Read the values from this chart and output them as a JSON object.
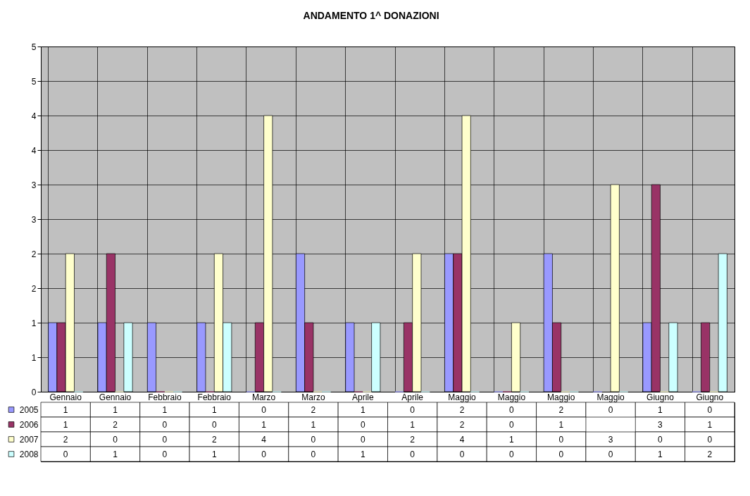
{
  "chart_data": {
    "type": "bar",
    "title": "ANDAMENTO 1^ DONAZIONI",
    "categories": [
      "Gennaio",
      "Gennaio",
      "Febbraio",
      "Febbraio",
      "Marzo",
      "Marzo",
      "Aprile",
      "Aprile",
      "Maggio",
      "Maggio",
      "Maggio",
      "Maggio",
      "Giugno",
      "Giugno"
    ],
    "series": [
      {
        "name": "2005",
        "color": "#9999ff",
        "values": [
          1,
          1,
          1,
          1,
          0,
          2,
          1,
          0,
          2,
          0,
          2,
          0,
          1,
          0
        ]
      },
      {
        "name": "2006",
        "color": "#993366",
        "values": [
          1,
          2,
          0,
          0,
          1,
          1,
          0,
          1,
          2,
          0,
          1,
          null,
          3,
          1
        ]
      },
      {
        "name": "2007",
        "color": "#ffffcc",
        "values": [
          2,
          0,
          0,
          2,
          4,
          0,
          0,
          2,
          4,
          1,
          0,
          3,
          0,
          0
        ]
      },
      {
        "name": "2008",
        "color": "#ccffff",
        "values": [
          0,
          1,
          0,
          1,
          0,
          0,
          1,
          0,
          0,
          0,
          0,
          0,
          1,
          2
        ]
      }
    ],
    "ylim": [
      0,
      5
    ],
    "yticks": [
      0,
      {
        "value": 0.5,
        "label": "1"
      },
      1,
      {
        "value": 1.5,
        "label": "2"
      },
      2,
      {
        "value": 2.5,
        "label": "3"
      },
      3,
      {
        "value": 3.5,
        "label": "4"
      },
      4,
      {
        "value": 4.5,
        "label": "5"
      },
      5
    ],
    "grid": true,
    "data_labels": true,
    "legend": "bottom left"
  }
}
